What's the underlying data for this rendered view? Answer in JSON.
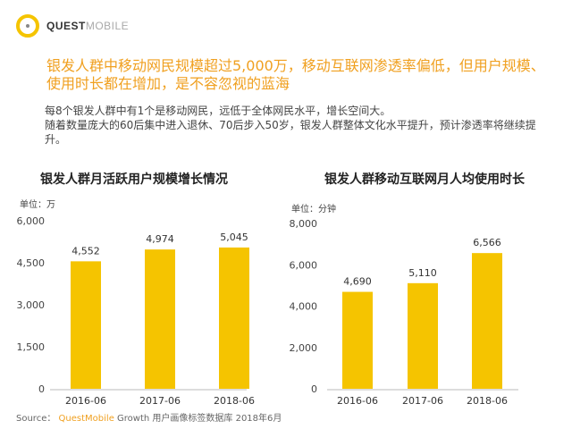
{
  "logo": {
    "bold": "QUEST",
    "light": "MOBILE"
  },
  "headline": "银发人群中移动网民规模超过5,000万，移动互联网渗透率偏低，但用户规模、使用时长都在增加，是不容忽视的蓝海",
  "body": [
    "每8个银发人群中有1个是移动网民，远低于全体网民水平，增长空间大。",
    "随着数量庞大的60后集中进入退休、70后步入50岁，银发人群整体文化水平提升，预计渗透率将继续提升。"
  ],
  "source": {
    "label": "Source：",
    "brand": "QuestMobile",
    "rest": "Growth 用户画像标签数据库 2018年6月"
  },
  "colors": {
    "bar": "#F5C400",
    "accent": "#F0A020"
  },
  "chart_data": [
    {
      "type": "bar",
      "title": "银发人群月活跃用户规模增长情况",
      "unit": "单位：万",
      "categories": [
        "2016-06",
        "2017-06",
        "2018-06"
      ],
      "values": [
        4552,
        4974,
        5045
      ],
      "labels": [
        "4,552",
        "4,974",
        "5,045"
      ],
      "yticks": [
        "0",
        "1,500",
        "3,000",
        "4,500",
        "6,000"
      ],
      "ytick_values": [
        0,
        1500,
        3000,
        4500,
        6000
      ],
      "ylim": [
        0,
        6000
      ]
    },
    {
      "type": "bar",
      "title": "银发人群移动互联网月人均使用时长",
      "unit": "单位：分钟",
      "categories": [
        "2016-06",
        "2017-06",
        "2018-06"
      ],
      "values": [
        4690,
        5110,
        6566
      ],
      "labels": [
        "4,690",
        "5,110",
        "6,566"
      ],
      "yticks": [
        "0",
        "2,000",
        "4,000",
        "6,000",
        "8,000"
      ],
      "ytick_values": [
        0,
        2000,
        4000,
        6000,
        8000
      ],
      "ylim": [
        0,
        8000
      ]
    }
  ]
}
